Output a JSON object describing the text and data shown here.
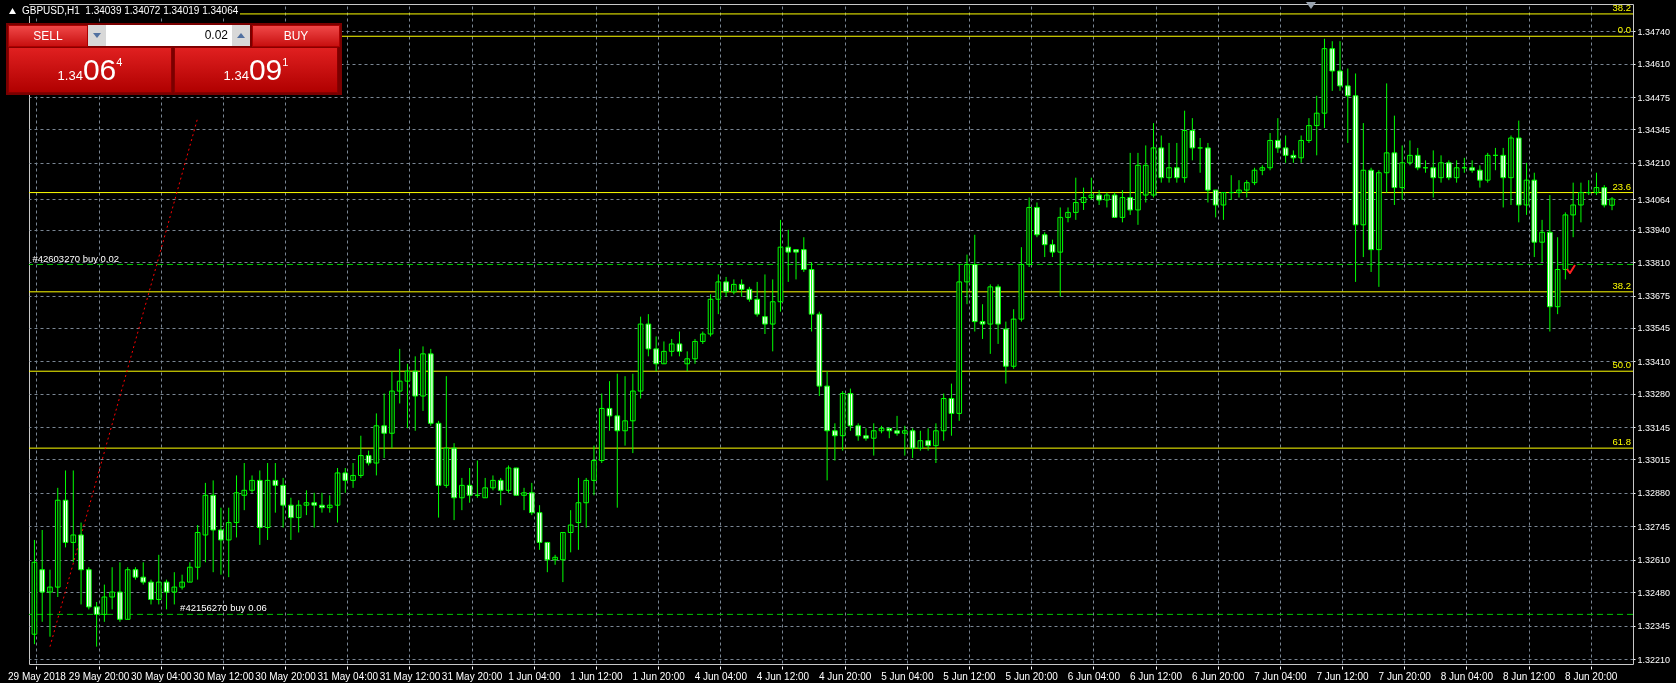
{
  "chart_data": {
    "type": "candlestick",
    "title": "GBPUSD,H1  1.34039 1.34072 1.34019 1.34064",
    "annotations": [
      "SELL",
      "0.02",
      "BUY",
      "1.3406$^{4}$",
      "1.3409$^{1}$",
      {
        "text": "38.2",
        "y": 1.3481
      },
      {
        "text": "0.0",
        "y": 1.3472
      },
      {
        "text": "23.6",
        "y": 1.3409
      },
      {
        "text": "38.2",
        "y": 1.3369
      },
      {
        "text": "50.0",
        "y": 1.3337
      },
      {
        "text": "61.8",
        "y": 1.3306
      }
    ],
    "categories": [
      "29 May 2018",
      null,
      null,
      null,
      null,
      null,
      null,
      null,
      "29 May 20:00",
      null,
      null,
      null,
      null,
      null,
      null,
      null,
      "30 May 04:00",
      null,
      null,
      null,
      null,
      null,
      null,
      null,
      "30 May 12:00",
      null,
      null,
      null,
      null,
      null,
      null,
      null,
      "30 May 20:00",
      null,
      null,
      null,
      null,
      null,
      null,
      null,
      "31 May 04:00",
      null,
      null,
      null,
      null,
      null,
      null,
      null,
      "31 May 12:00",
      null,
      null,
      null,
      null,
      null,
      null,
      null,
      "31 May 20:00",
      null,
      null,
      null,
      null,
      null,
      null,
      null,
      "1 Jun 04:00",
      null,
      null,
      null,
      null,
      null,
      null,
      null,
      "1 Jun 12:00",
      null,
      null,
      null,
      null,
      null,
      null,
      null,
      "1 Jun 20:00",
      null,
      null,
      null,
      null,
      null,
      null,
      null,
      "4 Jun 04:00",
      null,
      null,
      null,
      null,
      null,
      null,
      null,
      "4 Jun 12:00",
      null,
      null,
      null,
      null,
      null,
      null,
      null,
      "4 Jun 20:00",
      null,
      null,
      null,
      null,
      null,
      null,
      null,
      "5 Jun 04:00",
      null,
      null,
      null,
      null,
      null,
      null,
      null,
      "5 Jun 12:00",
      null,
      null,
      null,
      null,
      null,
      null,
      null,
      "5 Jun 20:00",
      null,
      null,
      null,
      null,
      null,
      null,
      null,
      "6 Jun 04:00",
      null,
      null,
      null,
      null,
      null,
      null,
      null,
      "6 Jun 12:00",
      null,
      null,
      null,
      null,
      null,
      null,
      null,
      "6 Jun 20:00",
      null,
      null,
      null,
      null,
      null,
      null,
      null,
      "7 Jun 04:00",
      null,
      null,
      null,
      null,
      null,
      null,
      null,
      "7 Jun 12:00",
      null,
      null,
      null,
      null,
      null,
      null,
      null,
      "7 Jun 20:00",
      null,
      null,
      null,
      null,
      null,
      null,
      null,
      "8 Jun 04:00",
      null,
      null,
      null,
      null,
      null,
      null,
      null,
      "8 Jun 12:00",
      null,
      null,
      null,
      null,
      null,
      null,
      null,
      "8 Jun 20:00",
      null,
      null,
      null
    ],
    "ohlc": [
      [
        1.3231,
        1.3269,
        1.3227,
        1.326
      ],
      [
        1.3257,
        1.3273,
        1.3236,
        1.3248
      ],
      [
        1.3248,
        1.3257,
        1.323,
        1.325
      ],
      [
        1.325,
        1.329,
        1.3246,
        1.3285
      ],
      [
        1.3285,
        1.3297,
        1.3266,
        1.3268
      ],
      [
        1.3268,
        1.3297,
        1.326,
        1.3271
      ],
      [
        1.3271,
        1.3276,
        1.3243,
        1.3257
      ],
      [
        1.3257,
        1.3258,
        1.3241,
        1.3242
      ],
      [
        1.3242,
        1.3244,
        1.3226,
        1.3239
      ],
      [
        1.3239,
        1.3251,
        1.3236,
        1.3246
      ],
      [
        1.3246,
        1.3258,
        1.3241,
        1.3248
      ],
      [
        1.3248,
        1.326,
        1.3236,
        1.3237
      ],
      [
        1.3237,
        1.3258,
        1.3237,
        1.3257
      ],
      [
        1.3257,
        1.3258,
        1.3253,
        1.3254
      ],
      [
        1.3254,
        1.326,
        1.3251,
        1.3252
      ],
      [
        1.3252,
        1.3253,
        1.3243,
        1.3245
      ],
      [
        1.3245,
        1.3263,
        1.3243,
        1.3252
      ],
      [
        1.3252,
        1.3253,
        1.3241,
        1.3248
      ],
      [
        1.3248,
        1.3256,
        1.3243,
        1.325
      ],
      [
        1.325,
        1.3255,
        1.3249,
        1.3252
      ],
      [
        1.3252,
        1.326,
        1.3252,
        1.3258
      ],
      [
        1.3258,
        1.3275,
        1.3253,
        1.3272
      ],
      [
        1.3271,
        1.3292,
        1.326,
        1.3287
      ],
      [
        1.3287,
        1.3293,
        1.3256,
        1.3273
      ],
      [
        1.3273,
        1.3282,
        1.3255,
        1.3269
      ],
      [
        1.3269,
        1.3282,
        1.3254,
        1.3276
      ],
      [
        1.3276,
        1.3295,
        1.327,
        1.3288
      ],
      [
        1.3287,
        1.33,
        1.3281,
        1.3289
      ],
      [
        1.3289,
        1.3295,
        1.3288,
        1.3293
      ],
      [
        1.3293,
        1.3297,
        1.3267,
        1.3274
      ],
      [
        1.3274,
        1.33,
        1.3269,
        1.3293
      ],
      [
        1.3293,
        1.33,
        1.328,
        1.3291
      ],
      [
        1.3291,
        1.3294,
        1.3274,
        1.3283
      ],
      [
        1.3283,
        1.3286,
        1.3269,
        1.3278
      ],
      [
        1.3278,
        1.3285,
        1.3272,
        1.3283
      ],
      [
        1.3283,
        1.3289,
        1.3279,
        1.3284
      ],
      [
        1.3284,
        1.3288,
        1.3274,
        1.3283
      ],
      [
        1.3283,
        1.3288,
        1.328,
        1.3282
      ],
      [
        1.3282,
        1.3287,
        1.328,
        1.3283
      ],
      [
        1.3283,
        1.3298,
        1.3276,
        1.3296
      ],
      [
        1.3296,
        1.3298,
        1.3288,
        1.3293
      ],
      [
        1.3293,
        1.33,
        1.329,
        1.3295
      ],
      [
        1.3295,
        1.3311,
        1.3294,
        1.3303
      ],
      [
        1.3303,
        1.3305,
        1.3299,
        1.33
      ],
      [
        1.33,
        1.332,
        1.3295,
        1.3315
      ],
      [
        1.3315,
        1.3328,
        1.3302,
        1.3312
      ],
      [
        1.3312,
        1.3337,
        1.3306,
        1.3329
      ],
      [
        1.3329,
        1.3346,
        1.3324,
        1.3333
      ],
      [
        1.3333,
        1.334,
        1.3314,
        1.3337
      ],
      [
        1.3337,
        1.3343,
        1.3313,
        1.3327
      ],
      [
        1.3327,
        1.3347,
        1.3321,
        1.3344
      ],
      [
        1.3344,
        1.3346,
        1.3315,
        1.3316
      ],
      [
        1.3316,
        1.3317,
        1.3278,
        1.3291
      ],
      [
        1.3291,
        1.3335,
        1.329,
        1.3306
      ],
      [
        1.3306,
        1.3308,
        1.3277,
        1.3286
      ],
      [
        1.3286,
        1.3294,
        1.3281,
        1.3291
      ],
      [
        1.3291,
        1.3298,
        1.3284,
        1.3287
      ],
      [
        1.3287,
        1.3301,
        1.3286,
        1.3287
      ],
      [
        1.3286,
        1.3294,
        1.3286,
        1.329
      ],
      [
        1.329,
        1.3295,
        1.3289,
        1.3293
      ],
      [
        1.3293,
        1.3294,
        1.3283,
        1.3289
      ],
      [
        1.3289,
        1.3299,
        1.3288,
        1.3298
      ],
      [
        1.3298,
        1.3298,
        1.3287,
        1.3287
      ],
      [
        1.3287,
        1.329,
        1.3281,
        1.3288
      ],
      [
        1.3288,
        1.3292,
        1.3279,
        1.328
      ],
      [
        1.328,
        1.3283,
        1.3265,
        1.3268
      ],
      [
        1.3268,
        1.3268,
        1.3256,
        1.3261
      ],
      [
        1.3261,
        1.3263,
        1.3259,
        1.3262
      ],
      [
        1.3261,
        1.3272,
        1.3252,
        1.3272
      ],
      [
        1.3272,
        1.3281,
        1.3264,
        1.3275
      ],
      [
        1.3276,
        1.3294,
        1.3265,
        1.3284
      ],
      [
        1.3284,
        1.3294,
        1.3274,
        1.3293
      ],
      [
        1.3293,
        1.3307,
        1.3287,
        1.3301
      ],
      [
        1.3301,
        1.3328,
        1.33,
        1.3322
      ],
      [
        1.3322,
        1.3333,
        1.3313,
        1.3319
      ],
      [
        1.3319,
        1.3336,
        1.3282,
        1.3313
      ],
      [
        1.3313,
        1.3335,
        1.3307,
        1.3317
      ],
      [
        1.3317,
        1.3336,
        1.3304,
        1.3329
      ],
      [
        1.3329,
        1.3359,
        1.3326,
        1.3356
      ],
      [
        1.3356,
        1.336,
        1.3343,
        1.3346
      ],
      [
        1.3346,
        1.3351,
        1.3337,
        1.334
      ],
      [
        1.334,
        1.3349,
        1.334,
        1.3345
      ],
      [
        1.3345,
        1.335,
        1.3343,
        1.3348
      ],
      [
        1.3348,
        1.3353,
        1.3343,
        1.3345
      ],
      [
        1.334,
        1.3345,
        1.3337,
        1.3342
      ],
      [
        1.3342,
        1.335,
        1.334,
        1.3349
      ],
      [
        1.3349,
        1.3353,
        1.3348,
        1.3352
      ],
      [
        1.3352,
        1.3368,
        1.3351,
        1.3366
      ],
      [
        1.3366,
        1.3376,
        1.336,
        1.3373
      ],
      [
        1.3373,
        1.3375,
        1.3367,
        1.3369
      ],
      [
        1.3369,
        1.3374,
        1.3368,
        1.3372
      ],
      [
        1.3372,
        1.3374,
        1.3367,
        1.337
      ],
      [
        1.337,
        1.3371,
        1.3365,
        1.3366
      ],
      [
        1.3366,
        1.3373,
        1.3359,
        1.336
      ],
      [
        1.3359,
        1.3376,
        1.3352,
        1.3356
      ],
      [
        1.3356,
        1.3374,
        1.3345,
        1.3365
      ],
      [
        1.3365,
        1.3398,
        1.3361,
        1.3387
      ],
      [
        1.3387,
        1.3394,
        1.3373,
        1.3385
      ],
      [
        1.3386,
        1.3386,
        1.3374,
        1.3385
      ],
      [
        1.3386,
        1.3391,
        1.3377,
        1.3378
      ],
      [
        1.3378,
        1.3381,
        1.3353,
        1.336
      ],
      [
        1.336,
        1.3361,
        1.3327,
        1.3331
      ],
      [
        1.3331,
        1.3337,
        1.3293,
        1.3313
      ],
      [
        1.3313,
        1.3316,
        1.3301,
        1.3311
      ],
      [
        1.3311,
        1.3329,
        1.3305,
        1.3328
      ],
      [
        1.3328,
        1.333,
        1.3313,
        1.3315
      ],
      [
        1.3315,
        1.3316,
        1.3309,
        1.3311
      ],
      [
        1.3311,
        1.3314,
        1.3309,
        1.331
      ],
      [
        1.331,
        1.3316,
        1.3303,
        1.3313
      ],
      [
        1.3313,
        1.3315,
        1.3312,
        1.3314
      ],
      [
        1.3314,
        1.3314,
        1.331,
        1.3313
      ],
      [
        1.3313,
        1.3319,
        1.3311,
        1.3312
      ],
      [
        1.3312,
        1.3315,
        1.3303,
        1.3313
      ],
      [
        1.3313,
        1.3314,
        1.3302,
        1.3306
      ],
      [
        1.3306,
        1.3313,
        1.3305,
        1.3309
      ],
      [
        1.3309,
        1.3314,
        1.3305,
        1.3307
      ],
      [
        1.3307,
        1.3316,
        1.33,
        1.3313
      ],
      [
        1.3313,
        1.3328,
        1.3309,
        1.3326
      ],
      [
        1.3326,
        1.3332,
        1.3311,
        1.332
      ],
      [
        1.332,
        1.338,
        1.3317,
        1.3373
      ],
      [
        1.3373,
        1.3384,
        1.3364,
        1.338
      ],
      [
        1.338,
        1.3392,
        1.3353,
        1.3357
      ],
      [
        1.3357,
        1.3364,
        1.335,
        1.3356
      ],
      [
        1.3356,
        1.3372,
        1.3344,
        1.3371
      ],
      [
        1.3371,
        1.3372,
        1.3348,
        1.3356
      ],
      [
        1.3354,
        1.3357,
        1.3332,
        1.3339
      ],
      [
        1.3339,
        1.3362,
        1.3338,
        1.3358
      ],
      [
        1.3358,
        1.3387,
        1.3357,
        1.338
      ],
      [
        1.338,
        1.3407,
        1.3379,
        1.3403
      ],
      [
        1.3403,
        1.3405,
        1.3391,
        1.3392
      ],
      [
        1.3392,
        1.3393,
        1.3383,
        1.3388
      ],
      [
        1.3388,
        1.339,
        1.3383,
        1.3385
      ],
      [
        1.3385,
        1.3403,
        1.3367,
        1.3399
      ],
      [
        1.3399,
        1.3403,
        1.3397,
        1.3401
      ],
      [
        1.3401,
        1.3415,
        1.3398,
        1.3405
      ],
      [
        1.3405,
        1.3411,
        1.3402,
        1.3407
      ],
      [
        1.3407,
        1.3415,
        1.3406,
        1.3408
      ],
      [
        1.3408,
        1.341,
        1.3404,
        1.3406
      ],
      [
        1.3406,
        1.3409,
        1.3403,
        1.3408
      ],
      [
        1.3408,
        1.3409,
        1.3399,
        1.3399
      ],
      [
        1.3399,
        1.341,
        1.3397,
        1.3407
      ],
      [
        1.3407,
        1.3425,
        1.34,
        1.3402
      ],
      [
        1.3402,
        1.3425,
        1.3396,
        1.342
      ],
      [
        1.3408,
        1.3428,
        1.3405,
        1.342
      ],
      [
        1.3408,
        1.3437,
        1.3407,
        1.3427
      ],
      [
        1.3427,
        1.3432,
        1.3413,
        1.3415
      ],
      [
        1.3415,
        1.3429,
        1.3413,
        1.3419
      ],
      [
        1.3419,
        1.3429,
        1.3413,
        1.3415
      ],
      [
        1.3415,
        1.3442,
        1.3413,
        1.3434
      ],
      [
        1.3434,
        1.3439,
        1.3422,
        1.3427
      ],
      [
        1.3427,
        1.3431,
        1.3417,
        1.3427
      ],
      [
        1.3427,
        1.3429,
        1.3405,
        1.341
      ],
      [
        1.341,
        1.341,
        1.3399,
        1.3404
      ],
      [
        1.3404,
        1.3409,
        1.3398,
        1.3409
      ],
      [
        1.3409,
        1.3416,
        1.3406,
        1.3409
      ],
      [
        1.3409,
        1.3414,
        1.3407,
        1.341
      ],
      [
        1.341,
        1.3414,
        1.3407,
        1.3413
      ],
      [
        1.3413,
        1.3419,
        1.3412,
        1.3418
      ],
      [
        1.3418,
        1.342,
        1.3416,
        1.3419
      ],
      [
        1.3419,
        1.3433,
        1.3418,
        1.343
      ],
      [
        1.343,
        1.3439,
        1.3425,
        1.3427
      ],
      [
        1.3427,
        1.3432,
        1.3421,
        1.3424
      ],
      [
        1.3424,
        1.3426,
        1.3421,
        1.3423
      ],
      [
        1.3423,
        1.3432,
        1.3421,
        1.343
      ],
      [
        1.343,
        1.3439,
        1.3429,
        1.3436
      ],
      [
        1.3436,
        1.3448,
        1.3424,
        1.3441
      ],
      [
        1.3441,
        1.3471,
        1.3435,
        1.3467
      ],
      [
        1.3467,
        1.347,
        1.345,
        1.3458
      ],
      [
        1.3458,
        1.347,
        1.345,
        1.3452
      ],
      [
        1.3452,
        1.3459,
        1.3429,
        1.3448
      ],
      [
        1.3448,
        1.3457,
        1.3373,
        1.3396
      ],
      [
        1.3396,
        1.3437,
        1.3383,
        1.3418
      ],
      [
        1.3418,
        1.3419,
        1.3377,
        1.3386
      ],
      [
        1.3386,
        1.3418,
        1.3371,
        1.3417
      ],
      [
        1.3417,
        1.3453,
        1.3409,
        1.3425
      ],
      [
        1.3425,
        1.344,
        1.3404,
        1.3411
      ],
      [
        1.3411,
        1.3428,
        1.3406,
        1.3421
      ],
      [
        1.3421,
        1.343,
        1.342,
        1.3424
      ],
      [
        1.3424,
        1.3427,
        1.3418,
        1.3419
      ],
      [
        1.3419,
        1.3422,
        1.3417,
        1.3419
      ],
      [
        1.3419,
        1.3426,
        1.3407,
        1.3415
      ],
      [
        1.3415,
        1.3424,
        1.3413,
        1.3421
      ],
      [
        1.3421,
        1.3422,
        1.3414,
        1.3415
      ],
      [
        1.3415,
        1.3422,
        1.3413,
        1.3419
      ],
      [
        1.3419,
        1.3423,
        1.3417,
        1.3419
      ],
      [
        1.3419,
        1.3422,
        1.3417,
        1.3418
      ],
      [
        1.3418,
        1.342,
        1.3411,
        1.3414
      ],
      [
        1.3414,
        1.3425,
        1.3413,
        1.3424
      ],
      [
        1.3424,
        1.3427,
        1.3418,
        1.3424
      ],
      [
        1.3424,
        1.3427,
        1.3403,
        1.3415
      ],
      [
        1.3415,
        1.3432,
        1.3404,
        1.3431
      ],
      [
        1.3431,
        1.3438,
        1.3397,
        1.3404
      ],
      [
        1.3404,
        1.3421,
        1.34,
        1.3414
      ],
      [
        1.3414,
        1.3417,
        1.3383,
        1.3389
      ],
      [
        1.3389,
        1.3398,
        1.3381,
        1.3393
      ],
      [
        1.3393,
        1.3408,
        1.3353,
        1.3363
      ],
      [
        1.3363,
        1.3391,
        1.336,
        1.3378
      ],
      [
        1.3378,
        1.3401,
        1.3374,
        1.34
      ],
      [
        1.34,
        1.3413,
        1.3391,
        1.3404
      ],
      [
        1.3404,
        1.3413,
        1.3397,
        1.3409
      ],
      [
        1.3409,
        1.3414,
        1.3408,
        1.3409
      ],
      [
        1.3409,
        1.3417,
        1.3408,
        1.3411
      ],
      [
        1.3411,
        1.3412,
        1.3403,
        1.3404
      ],
      [
        1.34039,
        1.34072,
        1.34019,
        1.34064
      ]
    ],
    "series": [
      {
        "type": "line",
        "color": "#ff0000",
        "line_style": "dotted",
        "values": [
          null,
          null,
          1.3226,
          null,
          null,
          null,
          null,
          null,
          null,
          null,
          null,
          null,
          null,
          null,
          null,
          null,
          null,
          null,
          null,
          null,
          null,
          1.3439,
          null,
          null,
          null,
          null,
          null,
          null,
          null,
          null,
          null,
          null,
          null,
          null,
          null,
          null,
          null,
          null,
          null,
          null,
          null,
          null,
          null,
          null,
          null,
          null,
          null,
          null,
          null,
          null,
          null,
          null,
          null,
          null,
          null,
          null,
          null,
          null,
          null,
          null,
          null,
          null,
          null,
          null,
          null,
          null,
          null,
          null,
          null,
          null,
          null,
          null,
          null,
          null,
          null,
          null,
          null,
          null,
          null,
          null,
          null,
          null,
          null,
          null,
          null,
          null,
          null,
          null,
          null,
          null,
          null,
          null,
          null,
          null,
          null,
          null,
          null,
          null,
          null,
          null,
          null,
          null,
          null,
          null,
          null,
          null,
          null,
          null,
          null,
          null,
          null,
          null,
          null,
          null,
          null,
          null,
          null,
          null,
          null,
          null,
          null,
          null,
          null,
          null,
          null,
          null,
          null,
          null,
          null,
          null,
          null,
          null,
          null,
          null,
          null,
          null,
          null,
          null,
          null,
          null,
          null,
          null,
          null,
          null,
          null,
          null,
          null,
          null,
          null,
          null,
          null,
          null,
          null,
          null,
          null,
          null,
          null,
          null,
          null,
          null,
          null,
          null,
          null,
          null,
          null,
          null,
          null,
          null,
          null,
          null,
          null,
          null,
          null,
          null,
          null,
          null,
          null,
          null,
          null,
          null,
          null,
          null,
          null,
          null,
          null,
          null,
          null,
          null,
          null,
          null,
          null,
          null,
          null,
          null,
          null,
          null,
          null,
          null,
          null,
          null,
          null,
          null,
          null,
          null
        ]
      }
    ],
    "ylim": [
      1.3219,
      1.3485
    ],
    "yticks": [
      {
        "value": 1.3474,
        "label": "1.34740"
      },
      {
        "value": 1.3461,
        "label": "1.34610"
      },
      {
        "value": 1.34475,
        "label": "1.34475"
      },
      {
        "value": 1.34345,
        "label": "1.34345"
      },
      {
        "value": 1.3421,
        "label": "1.34210"
      },
      {
        "value": 1.34064,
        "label": "1.34064"
      },
      {
        "value": 1.3394,
        "label": "1.33940"
      },
      {
        "value": 1.3381,
        "label": "1.33810"
      },
      {
        "value": 1.33675,
        "label": "1.33675"
      },
      {
        "value": 1.33545,
        "label": "1.33545"
      },
      {
        "value": 1.3341,
        "label": "1.33410"
      },
      {
        "value": 1.3328,
        "label": "1.33280"
      },
      {
        "value": 1.33145,
        "label": "1.33145"
      },
      {
        "value": 1.33015,
        "label": "1.33015"
      },
      {
        "value": 1.3288,
        "label": "1.32880"
      },
      {
        "value": 1.32745,
        "label": "1.32745"
      },
      {
        "value": 1.3261,
        "label": "1.32610"
      },
      {
        "value": 1.3248,
        "label": "1.32480"
      },
      {
        "value": 1.32345,
        "label": "1.32345"
      },
      {
        "value": 1.3221,
        "label": "1.32210"
      }
    ],
    "grid": true,
    "ref_lines": [
      {
        "axis": "y",
        "value": 1.3481,
        "color": "#ffff00",
        "line_style": "solid"
      },
      {
        "axis": "y",
        "value": 1.3472,
        "color": "#ffff00",
        "line_style": "solid"
      },
      {
        "axis": "y",
        "value": 1.3409,
        "color": "#ffff00",
        "line_style": "solid"
      },
      {
        "axis": "y",
        "value": 1.3369,
        "color": "#ffff00",
        "line_style": "solid"
      },
      {
        "axis": "y",
        "value": 1.3337,
        "color": "#ffff00",
        "line_style": "solid"
      },
      {
        "axis": "y",
        "value": 1.3306,
        "color": "#ffff00",
        "line_style": "solid"
      },
      {
        "axis": "y",
        "value": 1.338,
        "label": "#42603270 buy 0.02",
        "color": "#00c800",
        "line_style": "dashed"
      },
      {
        "axis": "y",
        "value": 1.3239,
        "label": "#42156270 buy 0.06",
        "color": "#00c800",
        "line_style": "dashed"
      }
    ]
  }
}
